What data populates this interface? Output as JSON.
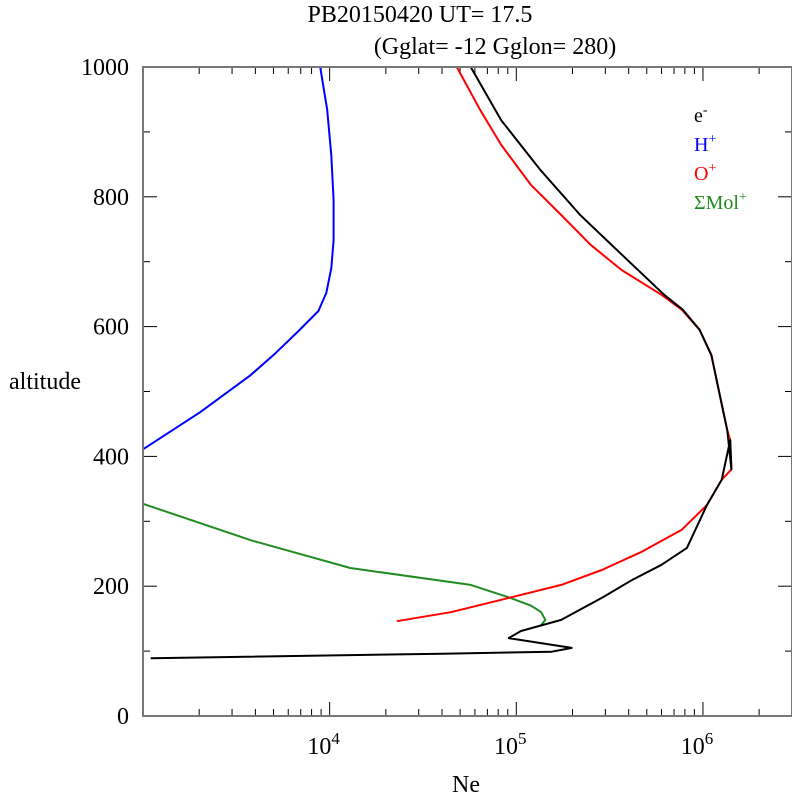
{
  "chart_data": {
    "type": "line",
    "title": "PB20150420   UT=  17.5",
    "subtitle": "(Gglat= -12   Gglon=  280)",
    "xlabel": "Ne",
    "ylabel": "altitude",
    "xscale": "log",
    "xlim": [
      1000,
      3000000
    ],
    "ylim": [
      0,
      1000
    ],
    "x_ticks": [
      {
        "base": "10",
        "exp": "4",
        "value": 10000
      },
      {
        "base": "10",
        "exp": "5",
        "value": 100000
      },
      {
        "base": "10",
        "exp": "6",
        "value": 1000000
      }
    ],
    "y_ticks": [
      "0",
      "200",
      "400",
      "600",
      "800",
      "1000"
    ],
    "y_tick_values": [
      0,
      200,
      400,
      600,
      800,
      1000
    ],
    "legend_position": "top-right",
    "series": [
      {
        "name": "e",
        "sup": "-",
        "color": "#000000",
        "points": [
          [
            1100,
            89
          ],
          [
            40000,
            96
          ],
          [
            155000,
            99
          ],
          [
            198000,
            105
          ],
          [
            91000,
            120
          ],
          [
            106000,
            131
          ],
          [
            174000,
            148
          ],
          [
            244000,
            171
          ],
          [
            287000,
            182
          ],
          [
            420000,
            210
          ],
          [
            600000,
            233
          ],
          [
            820000,
            259
          ],
          [
            1050000,
            325
          ],
          [
            1260000,
            364
          ],
          [
            1400000,
            425
          ],
          [
            1420000,
            380
          ],
          [
            1350000,
            440
          ],
          [
            1230000,
            495
          ],
          [
            1110000,
            556
          ],
          [
            960000,
            595
          ],
          [
            780000,
            626
          ],
          [
            620000,
            649
          ],
          [
            370000,
            710
          ],
          [
            220000,
            772
          ],
          [
            135000,
            841
          ],
          [
            83000,
            918
          ],
          [
            57000,
            1000
          ]
        ]
      },
      {
        "name": "H",
        "sup": "+",
        "color": "#0000ff",
        "points": [
          [
            1000,
            411
          ],
          [
            2020,
            468
          ],
          [
            3760,
            525
          ],
          [
            5130,
            559
          ],
          [
            6800,
            593
          ],
          [
            8700,
            624
          ],
          [
            9600,
            652
          ],
          [
            10200,
            690
          ],
          [
            10500,
            733
          ],
          [
            10500,
            795
          ],
          [
            10200,
            864
          ],
          [
            9700,
            934
          ],
          [
            8900,
            1000
          ]
        ]
      },
      {
        "name": "O",
        "sup": "+",
        "color": "#ff0000",
        "points": [
          [
            22900,
            146
          ],
          [
            44600,
            160
          ],
          [
            83000,
            179
          ],
          [
            174000,
            202
          ],
          [
            287000,
            225
          ],
          [
            470000,
            253
          ],
          [
            770000,
            287
          ],
          [
            1050000,
            325
          ],
          [
            1260000,
            364
          ],
          [
            1420000,
            380
          ],
          [
            1400000,
            425
          ],
          [
            1350000,
            440
          ],
          [
            1230000,
            495
          ],
          [
            1110000,
            556
          ],
          [
            960000,
            595
          ],
          [
            770000,
            626
          ],
          [
            600000,
            649
          ],
          [
            367000,
            687
          ],
          [
            250000,
            726
          ],
          [
            174000,
            772
          ],
          [
            120000,
            818
          ],
          [
            83000,
            880
          ],
          [
            64000,
            934
          ],
          [
            48000,
            1000
          ]
        ]
      },
      {
        "name": "ΣMol",
        "sup": "+",
        "color": "#228b22",
        "points": [
          [
            1000,
            327
          ],
          [
            3760,
            271
          ],
          [
            12900,
            228
          ],
          [
            57000,
            202
          ],
          [
            93000,
            182
          ],
          [
            120000,
            170
          ],
          [
            136000,
            160
          ],
          [
            143000,
            148
          ],
          [
            136000,
            140
          ]
        ]
      }
    ]
  }
}
